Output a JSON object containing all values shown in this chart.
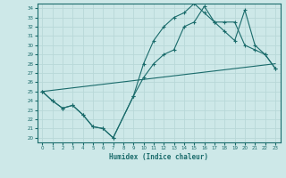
{
  "xlabel": "Humidex (Indice chaleur)",
  "xlim": [
    -0.5,
    23.5
  ],
  "ylim": [
    19.5,
    34.5
  ],
  "xticks": [
    0,
    1,
    2,
    3,
    4,
    5,
    6,
    7,
    8,
    9,
    10,
    11,
    12,
    13,
    14,
    15,
    16,
    17,
    18,
    19,
    20,
    21,
    22,
    23
  ],
  "yticks": [
    20,
    21,
    22,
    23,
    24,
    25,
    26,
    27,
    28,
    29,
    30,
    31,
    32,
    33,
    34
  ],
  "bg_color": "#cde8e8",
  "grid_color": "#b8d8d8",
  "line_color": "#1a6b6b",
  "line1_x": [
    0,
    1,
    2,
    3,
    4,
    5,
    6,
    7,
    9,
    10,
    11,
    12,
    13,
    14,
    15,
    16,
    17,
    18,
    19,
    20,
    21,
    22,
    23
  ],
  "line1_y": [
    25.0,
    24.0,
    23.2,
    23.5,
    22.5,
    21.2,
    21.0,
    20.0,
    24.5,
    26.5,
    28.0,
    29.0,
    29.5,
    32.0,
    32.5,
    34.2,
    32.5,
    31.5,
    30.5,
    33.8,
    30.0,
    29.0,
    27.5
  ],
  "line2_x": [
    0,
    1,
    2,
    3,
    4,
    5,
    6,
    7,
    9,
    10,
    11,
    12,
    13,
    14,
    15,
    16,
    17,
    18,
    19,
    20,
    21,
    22,
    23
  ],
  "line2_y": [
    25.0,
    24.0,
    23.2,
    23.5,
    22.5,
    21.2,
    21.0,
    20.0,
    24.5,
    28.0,
    30.5,
    32.0,
    33.0,
    33.5,
    34.5,
    33.5,
    32.5,
    32.5,
    32.5,
    30.0,
    29.5,
    29.0,
    27.5
  ],
  "line3_x": [
    0,
    23
  ],
  "line3_y": [
    25.0,
    28.0
  ]
}
